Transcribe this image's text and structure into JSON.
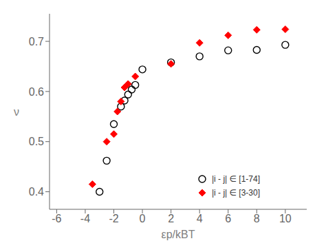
{
  "chart_data": {
    "type": "scatter",
    "xlabel": "εp/kBT",
    "ylabel": "ν",
    "xlim": [
      -6.5,
      11.5
    ],
    "ylim": [
      0.365,
      0.755
    ],
    "xticks": [
      -6,
      -4,
      -2,
      0,
      2,
      4,
      6,
      8,
      10
    ],
    "yticks": [
      0.4,
      0.5,
      0.6,
      0.7
    ],
    "grid": false,
    "legend": "lower right",
    "series": [
      {
        "name": "|i - j| ∈ [1-74]",
        "color": "black",
        "marker": "circle_open",
        "x": [
          -3.0,
          -2.5,
          -2.0,
          -1.5,
          -1.25,
          -1.0,
          -0.75,
          -0.5,
          0.0,
          2.0,
          4.0,
          6.0,
          8.0,
          10.0
        ],
        "values": [
          0.4,
          0.462,
          0.535,
          0.57,
          0.582,
          0.594,
          0.604,
          0.613,
          0.644,
          0.658,
          0.67,
          0.682,
          0.683,
          0.693
        ]
      },
      {
        "name": "|i - j| ∈ [3-30]",
        "color": "red",
        "marker": "diamond",
        "x": [
          -3.5,
          -2.5,
          -2.0,
          -1.75,
          -1.5,
          -1.25,
          -1.0,
          -0.5,
          2.0,
          4.0,
          6.0,
          8.0,
          10.0
        ],
        "values": [
          0.415,
          0.5,
          0.515,
          0.56,
          0.58,
          0.608,
          0.615,
          0.63,
          0.655,
          0.697,
          0.712,
          0.723,
          0.724
        ]
      }
    ]
  }
}
